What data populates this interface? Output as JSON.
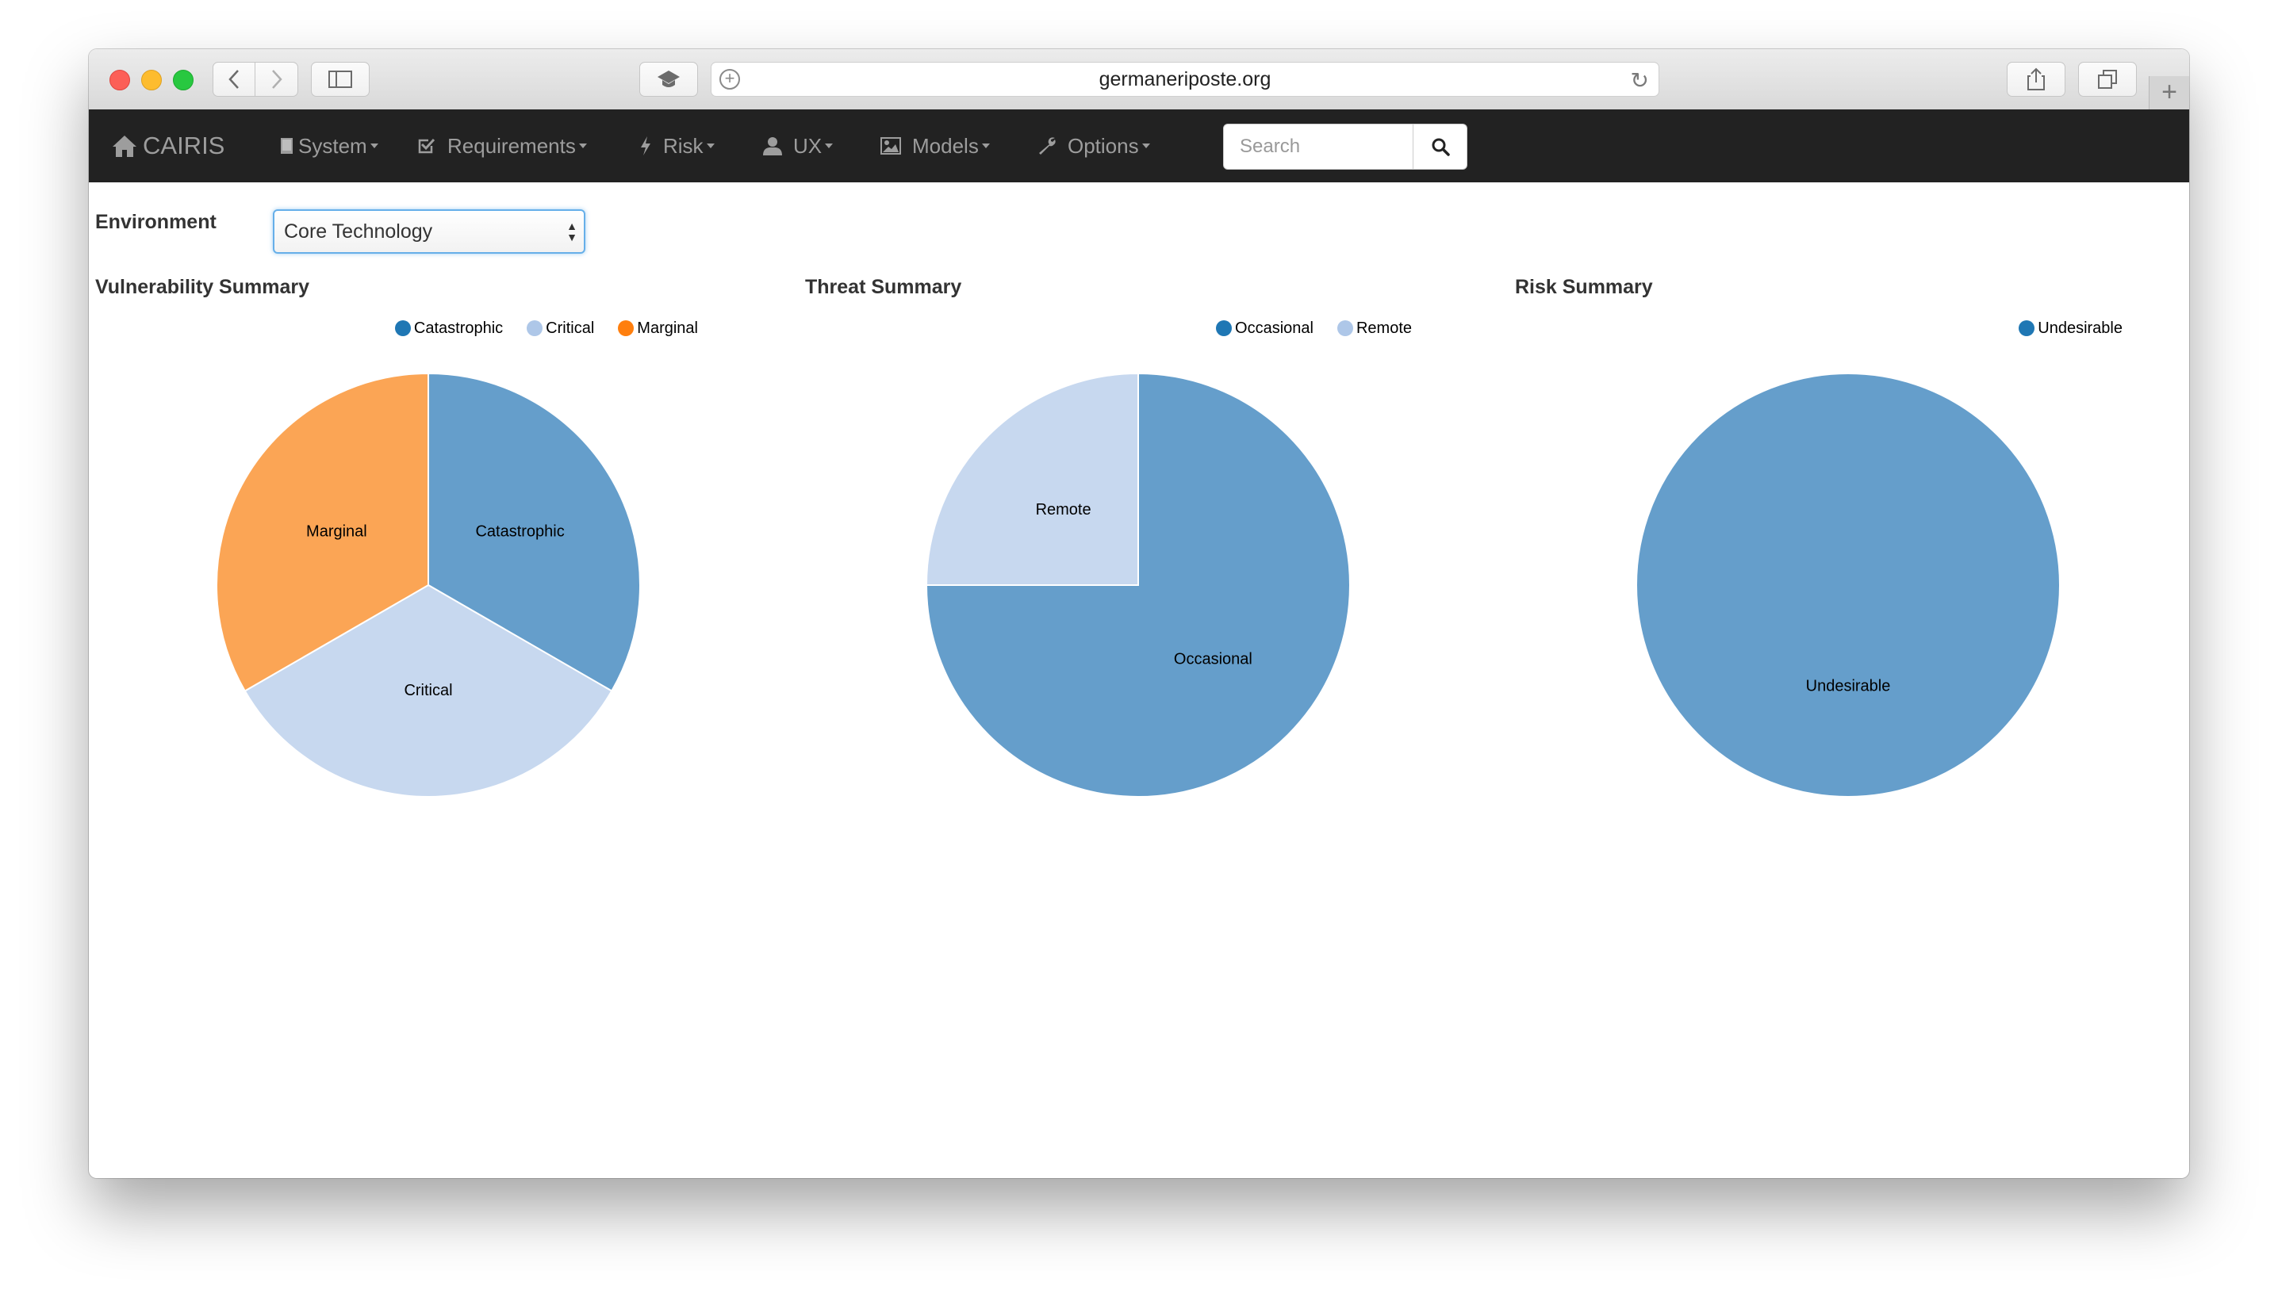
{
  "browser": {
    "url": "germaneriposte.org"
  },
  "navbar": {
    "brand": "CAIRIS",
    "items": [
      {
        "label": "System",
        "icon": "book-icon"
      },
      {
        "label": "Requirements",
        "icon": "check-square-icon"
      },
      {
        "label": "Risk",
        "icon": "bolt-icon"
      },
      {
        "label": "UX",
        "icon": "user-icon"
      },
      {
        "label": "Models",
        "icon": "picture-icon"
      },
      {
        "label": "Options",
        "icon": "wrench-icon"
      }
    ],
    "search_placeholder": "Search"
  },
  "environment": {
    "label": "Environment",
    "selected": "Core Technology"
  },
  "colors": {
    "dark_blue": "#1f77b4",
    "mid_blue": "#659ecb",
    "light_blue": "#c7d8ef",
    "orange": "#fba555",
    "orange_dark": "#ff7f0e",
    "legend_light_blue": "#aec7e8"
  },
  "chart_data": [
    {
      "type": "pie",
      "title": "Vulnerability Summary",
      "categories": [
        "Catastrophic",
        "Critical",
        "Marginal"
      ],
      "values": [
        1,
        1,
        1
      ],
      "colors": [
        "#659ecb",
        "#c7d8ef",
        "#fba555"
      ],
      "legend_colors": [
        "#1f77b4",
        "#aec7e8",
        "#ff7f0e"
      ],
      "legend": "top-right"
    },
    {
      "type": "pie",
      "title": "Threat Summary",
      "categories": [
        "Occasional",
        "Remote"
      ],
      "values": [
        3,
        1
      ],
      "colors": [
        "#659ecb",
        "#c7d8ef"
      ],
      "legend_colors": [
        "#1f77b4",
        "#aec7e8"
      ],
      "legend": "top-right"
    },
    {
      "type": "pie",
      "title": "Risk Summary",
      "categories": [
        "Undesirable"
      ],
      "values": [
        1
      ],
      "colors": [
        "#659ecb"
      ],
      "legend_colors": [
        "#1f77b4"
      ],
      "legend": "top-right"
    }
  ]
}
